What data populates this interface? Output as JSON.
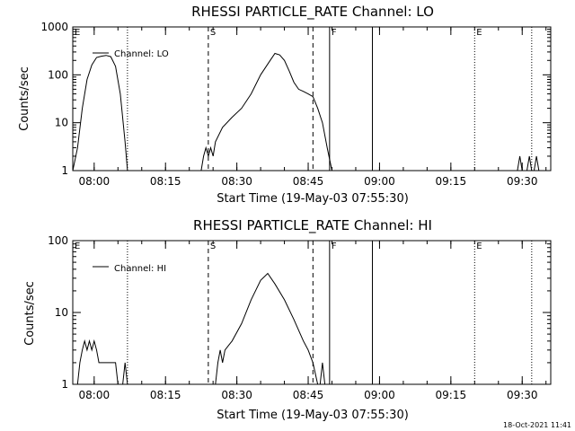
{
  "footer_date": "18-Oct-2021 11:41",
  "chart_data": [
    {
      "type": "line",
      "title": "RHESSI PARTICLE_RATE Channel: LO",
      "xlabel": "Start Time (19-May-03 07:55:30)",
      "ylabel": "Counts/sec",
      "yscale": "log",
      "xlim": [
        "07:55:30",
        "09:36:00"
      ],
      "ylim": [
        1,
        1000
      ],
      "x_ticks": [
        "08:00",
        "08:15",
        "08:30",
        "08:45",
        "09:00",
        "09:15",
        "09:30"
      ],
      "y_ticks": [
        "1",
        "10",
        "100",
        "1000"
      ],
      "legend": {
        "label": "Channel: LO",
        "placement": "top-left"
      },
      "flags": [
        {
          "label": "E",
          "time": "07:55:30"
        },
        {
          "label": "S",
          "time": "08:24:00"
        },
        {
          "label": "F",
          "time": "08:49:30"
        },
        {
          "label": "E",
          "time": "09:20:00"
        }
      ],
      "vlines": [
        {
          "time": "08:07:00",
          "style": "dotted"
        },
        {
          "time": "08:24:00",
          "style": "dashed"
        },
        {
          "time": "08:46:00",
          "style": "dashed"
        },
        {
          "time": "08:49:30",
          "style": "solid"
        },
        {
          "time": "08:58:30",
          "style": "solid"
        },
        {
          "time": "09:20:00",
          "style": "dotted"
        },
        {
          "time": "09:32:00",
          "style": "dotted"
        }
      ],
      "series": [
        {
          "name": "Channel: LO",
          "segments": [
            [
              [
                "07:55:30",
                1
              ],
              [
                "07:56:30",
                3
              ],
              [
                "07:57:30",
                20
              ],
              [
                "07:58:30",
                80
              ],
              [
                "07:59:30",
                160
              ],
              [
                "08:00:30",
                230
              ],
              [
                "08:01:30",
                245
              ],
              [
                "08:02:30",
                255
              ],
              [
                "08:03:30",
                240
              ],
              [
                "08:04:30",
                150
              ],
              [
                "08:05:30",
                40
              ],
              [
                "08:06:30",
                4
              ],
              [
                "08:07:00",
                1
              ]
            ],
            [
              [
                "08:22:30",
                1
              ],
              [
                "08:23:00",
                2
              ],
              [
                "08:23:30",
                3
              ],
              [
                "08:24:00",
                2
              ],
              [
                "08:24:30",
                3
              ],
              [
                "08:25:00",
                2
              ],
              [
                "08:25:30",
                4
              ],
              [
                "08:27:00",
                8
              ],
              [
                "08:29:00",
                13
              ],
              [
                "08:31:00",
                20
              ],
              [
                "08:33:00",
                40
              ],
              [
                "08:35:00",
                100
              ],
              [
                "08:37:00",
                200
              ],
              [
                "08:38:00",
                280
              ],
              [
                "08:39:00",
                260
              ],
              [
                "08:40:00",
                200
              ],
              [
                "08:41:00",
                120
              ],
              [
                "08:42:00",
                70
              ],
              [
                "08:43:00",
                50
              ],
              [
                "08:44:00",
                45
              ],
              [
                "08:45:00",
                40
              ],
              [
                "08:46:00",
                35
              ],
              [
                "08:47:00",
                20
              ],
              [
                "08:48:00",
                10
              ],
              [
                "08:49:00",
                3
              ],
              [
                "08:50:00",
                1
              ]
            ],
            [
              [
                "09:29:00",
                1
              ],
              [
                "09:29:30",
                2
              ],
              [
                "09:30:00",
                1
              ]
            ],
            [
              [
                "09:31:00",
                1
              ],
              [
                "09:31:30",
                2
              ],
              [
                "09:32:00",
                1
              ]
            ],
            [
              [
                "09:32:30",
                1
              ],
              [
                "09:33:00",
                2
              ],
              [
                "09:33:30",
                1
              ]
            ]
          ]
        }
      ]
    },
    {
      "type": "line",
      "title": "RHESSI PARTICLE_RATE Channel: HI",
      "xlabel": "Start Time (19-May-03 07:55:30)",
      "ylabel": "Counts/sec",
      "yscale": "log",
      "xlim": [
        "07:55:30",
        "09:36:00"
      ],
      "ylim": [
        1,
        100
      ],
      "x_ticks": [
        "08:00",
        "08:15",
        "08:30",
        "08:45",
        "09:00",
        "09:15",
        "09:30"
      ],
      "y_ticks": [
        "1",
        "10",
        "100"
      ],
      "legend": {
        "label": "Channel: HI",
        "placement": "top-left"
      },
      "flags": [
        {
          "label": "E",
          "time": "07:55:30"
        },
        {
          "label": "S",
          "time": "08:24:00"
        },
        {
          "label": "F",
          "time": "08:49:30"
        },
        {
          "label": "E",
          "time": "09:20:00"
        }
      ],
      "vlines": [
        {
          "time": "08:07:00",
          "style": "dotted"
        },
        {
          "time": "08:24:00",
          "style": "dashed"
        },
        {
          "time": "08:46:00",
          "style": "dashed"
        },
        {
          "time": "08:49:30",
          "style": "solid"
        },
        {
          "time": "08:58:30",
          "style": "solid"
        },
        {
          "time": "09:20:00",
          "style": "dotted"
        },
        {
          "time": "09:32:00",
          "style": "dotted"
        }
      ],
      "series": [
        {
          "name": "Channel: HI",
          "segments": [
            [
              [
                "07:56:30",
                1
              ],
              [
                "07:57:00",
                2
              ],
              [
                "07:57:30",
                3
              ],
              [
                "07:58:00",
                4
              ],
              [
                "07:58:30",
                3
              ],
              [
                "07:59:00",
                4
              ],
              [
                "07:59:30",
                3
              ],
              [
                "08:00:00",
                4
              ],
              [
                "08:00:30",
                3
              ],
              [
                "08:01:00",
                2
              ],
              [
                "08:04:30",
                2
              ],
              [
                "08:05:00",
                1
              ]
            ],
            [
              [
                "08:06:00",
                1
              ],
              [
                "08:06:30",
                2
              ],
              [
                "08:07:00",
                1
              ]
            ],
            [
              [
                "08:25:30",
                1
              ],
              [
                "08:26:00",
                2
              ],
              [
                "08:26:30",
                3
              ],
              [
                "08:27:00",
                2
              ],
              [
                "08:27:30",
                3
              ],
              [
                "08:29:00",
                4
              ],
              [
                "08:31:00",
                7
              ],
              [
                "08:33:00",
                15
              ],
              [
                "08:35:00",
                28
              ],
              [
                "08:36:30",
                35
              ],
              [
                "08:38:00",
                25
              ],
              [
                "08:40:00",
                15
              ],
              [
                "08:42:00",
                8
              ],
              [
                "08:44:00",
                4
              ],
              [
                "08:45:00",
                3
              ],
              [
                "08:46:00",
                2
              ],
              [
                "08:47:00",
                1
              ]
            ],
            [
              [
                "08:47:30",
                1
              ],
              [
                "08:48:00",
                2
              ],
              [
                "08:48:30",
                1
              ]
            ]
          ]
        }
      ]
    }
  ]
}
